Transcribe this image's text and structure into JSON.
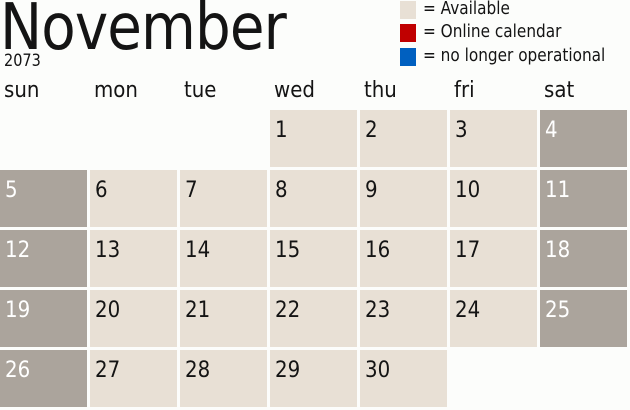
{
  "header": {
    "month": "November",
    "year": "2073"
  },
  "legend": [
    {
      "label": "= Available",
      "color": "#e8e0d5"
    },
    {
      "label": "= Online calendar",
      "color": "#c00000"
    },
    {
      "label": "= no longer operational",
      "color": "#0060c0"
    }
  ],
  "weekdays": [
    "sun",
    "mon",
    "tue",
    "wed",
    "thu",
    "fri",
    "sat"
  ],
  "colors": {
    "available": "#e8e0d5",
    "weekend": "#aba49c",
    "background": "#fcfdfb"
  },
  "first_weekday_index": 3,
  "days": [
    "1",
    "2",
    "3",
    "4",
    "5",
    "6",
    "7",
    "8",
    "9",
    "10",
    "11",
    "12",
    "13",
    "14",
    "15",
    "16",
    "17",
    "18",
    "19",
    "20",
    "21",
    "22",
    "23",
    "24",
    "25",
    "26",
    "27",
    "28",
    "29",
    "30"
  ]
}
